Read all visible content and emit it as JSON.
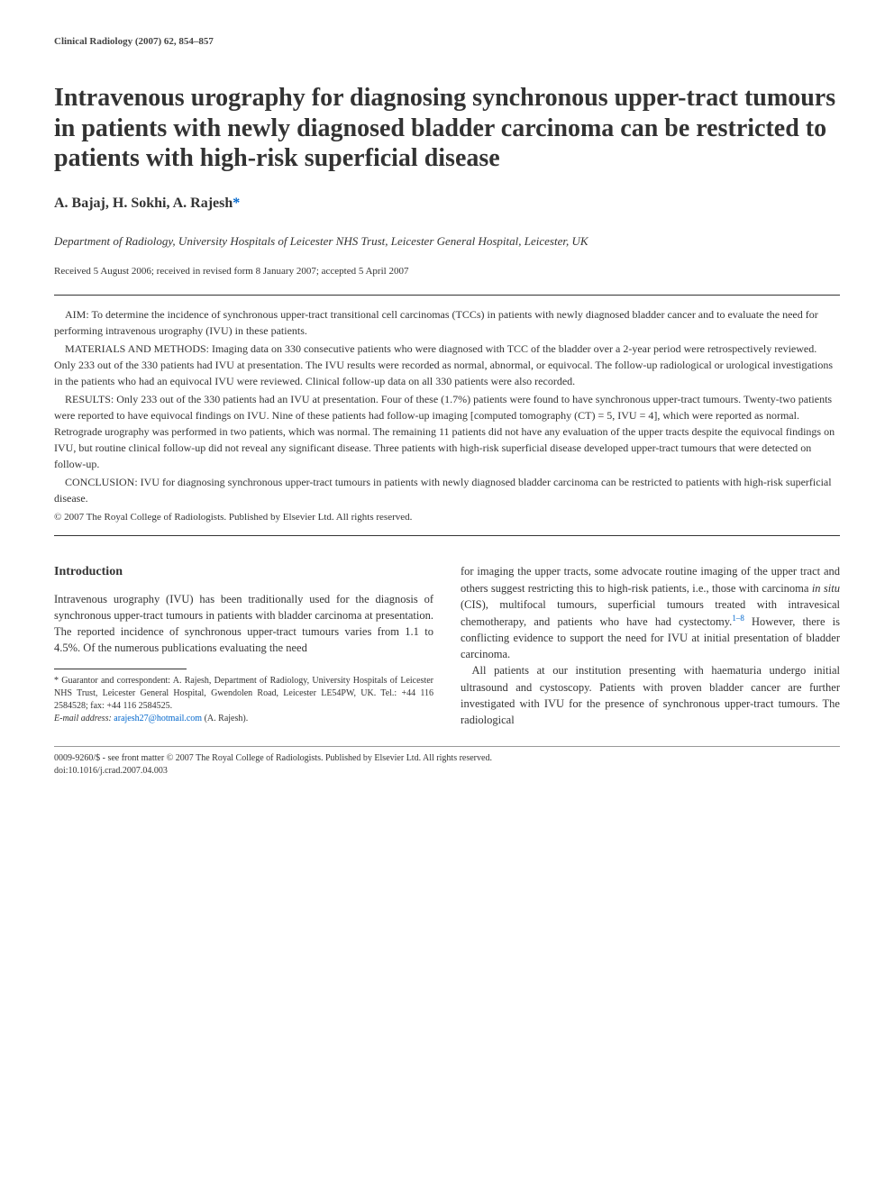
{
  "journal_header": "Clinical Radiology (2007) 62, 854–857",
  "title": "Intravenous urography for diagnosing synchronous upper-tract tumours in patients with newly diagnosed bladder carcinoma can be restricted to patients with high-risk superficial disease",
  "authors": "A. Bajaj, H. Sokhi, A. Rajesh",
  "author_marker": "*",
  "affiliation": "Department of Radiology, University Hospitals of Leicester NHS Trust, Leicester General Hospital, Leicester, UK",
  "dates": "Received 5 August 2006; received in revised form 8 January 2007; accepted 5 April 2007",
  "abstract": {
    "aim": "AIM: To determine the incidence of synchronous upper-tract transitional cell carcinomas (TCCs) in patients with newly diagnosed bladder cancer and to evaluate the need for performing intravenous urography (IVU) in these patients.",
    "methods": "MATERIALS AND METHODS: Imaging data on 330 consecutive patients who were diagnosed with TCC of the bladder over a 2-year period were retrospectively reviewed. Only 233 out of the 330 patients had IVU at presentation. The IVU results were recorded as normal, abnormal, or equivocal. The follow-up radiological or urological investigations in the patients who had an equivocal IVU were reviewed. Clinical follow-up data on all 330 patients were also recorded.",
    "results": "RESULTS: Only 233 out of the 330 patients had an IVU at presentation. Four of these (1.7%) patients were found to have synchronous upper-tract tumours. Twenty-two patients were reported to have equivocal findings on IVU. Nine of these patients had follow-up imaging [computed tomography (CT) = 5, IVU = 4], which were reported as normal. Retrograde urography was performed in two patients, which was normal. The remaining 11 patients did not have any evaluation of the upper tracts despite the equivocal findings on IVU, but routine clinical follow-up did not reveal any significant disease. Three patients with high-risk superficial disease developed upper-tract tumours that were detected on follow-up.",
    "conclusion": "CONCLUSION: IVU for diagnosing synchronous upper-tract tumours in patients with newly diagnosed bladder carcinoma can be restricted to patients with high-risk superficial disease.",
    "copyright": "© 2007 The Royal College of Radiologists. Published by Elsevier Ltd. All rights reserved."
  },
  "introduction": {
    "heading": "Introduction",
    "para1": "Intravenous urography (IVU) has been traditionally used for the diagnosis of synchronous upper-tract tumours in patients with bladder carcinoma at presentation. The reported incidence of synchronous upper-tract tumours varies from 1.1 to 4.5%. Of the numerous publications evaluating the need",
    "para2_a": "for imaging the upper tracts, some advocate routine imaging of the upper tract and others suggest restricting this to high-risk patients, i.e., those with carcinoma ",
    "para2_insitu": "in situ",
    "para2_b": " (CIS), multifocal tumours, superficial tumours treated with intravesical chemotherapy, and patients who have had cystectomy.",
    "ref_range": "1–8",
    "para2_c": " However, there is conflicting evidence to support the need for IVU at initial presentation of bladder carcinoma.",
    "para3": "All patients at our institution presenting with haematuria undergo initial ultrasound and cystoscopy. Patients with proven bladder cancer are further investigated with IVU for the presence of synchronous upper-tract tumours. The radiological"
  },
  "footnote": {
    "guarantor": "* Guarantor and correspondent: A. Rajesh, Department of Radiology, University Hospitals of Leicester NHS Trust, Leicester General Hospital, Gwendolen Road, Leicester LE54PW, UK. Tel.: +44 116 2584528; fax: +44 116 2584525.",
    "email_label": "E-mail address:",
    "email": "arajesh27@hotmail.com",
    "email_name": "(A. Rajesh)."
  },
  "footer": {
    "line1": "0009-9260/$ - see front matter © 2007 The Royal College of Radiologists. Published by Elsevier Ltd. All rights reserved.",
    "line2": "doi:10.1016/j.crad.2007.04.003"
  },
  "colors": {
    "text": "#333333",
    "link": "#0066cc",
    "background": "#ffffff",
    "rule": "#333333"
  },
  "typography": {
    "title_fontsize": 28,
    "author_fontsize": 16,
    "body_fontsize": 12.5,
    "abstract_fontsize": 12,
    "footnote_fontsize": 10
  }
}
